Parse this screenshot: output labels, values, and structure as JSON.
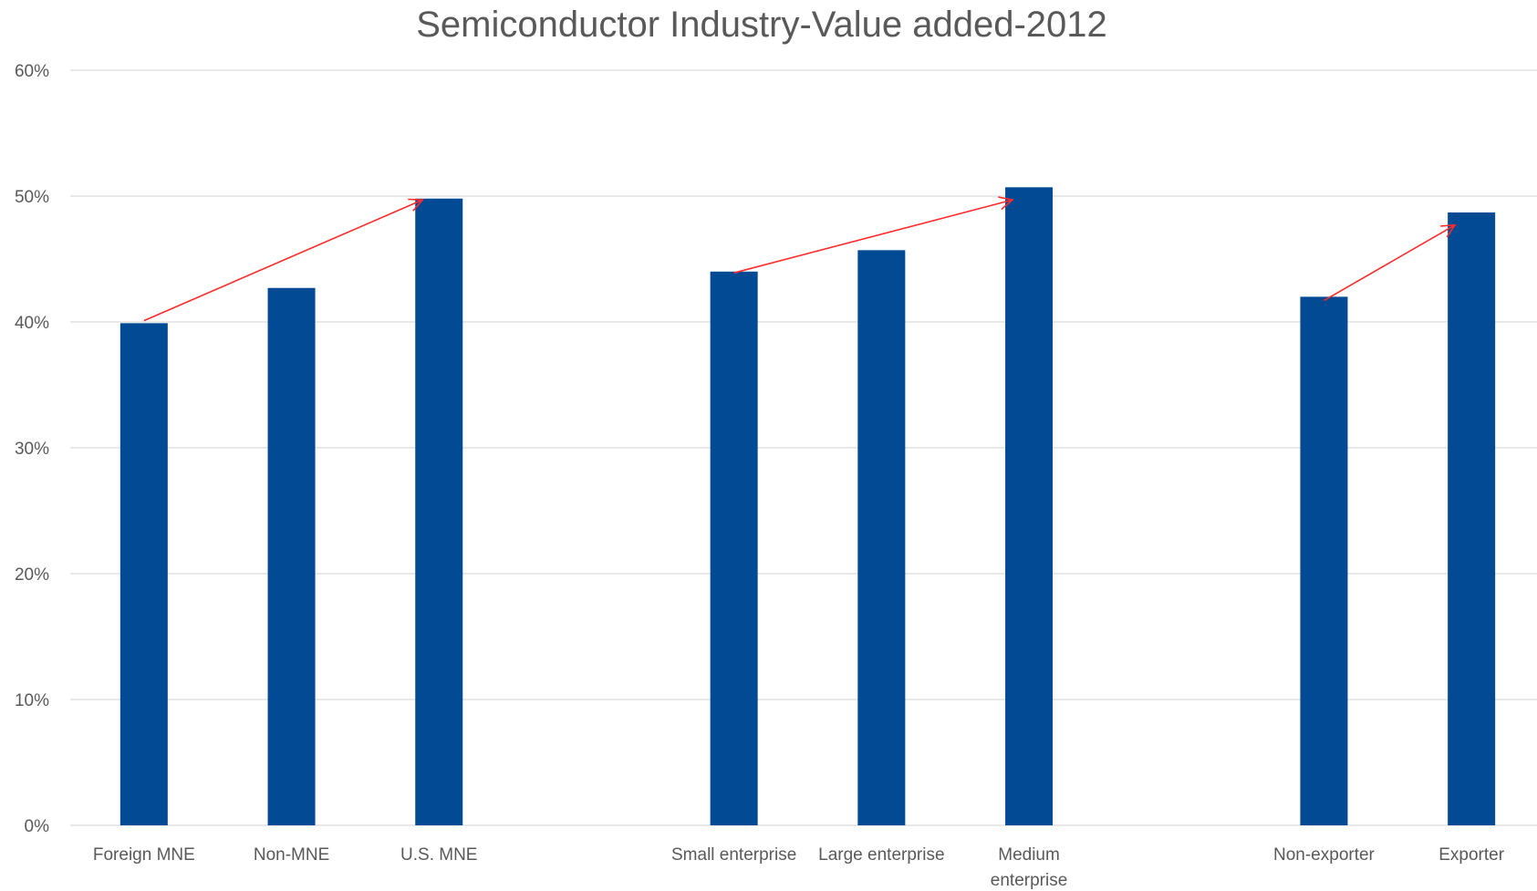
{
  "chart_data": {
    "type": "bar",
    "title": "Semiconductor Industry-Value added-2012",
    "xlabel": "",
    "ylabel": "",
    "ylim": [
      0,
      0.6
    ],
    "yticks": [
      {
        "value": 0.0,
        "label": "0%"
      },
      {
        "value": 0.1,
        "label": "10%"
      },
      {
        "value": 0.2,
        "label": "20%"
      },
      {
        "value": 0.3,
        "label": "30%"
      },
      {
        "value": 0.4,
        "label": "40%"
      },
      {
        "value": 0.5,
        "label": "50%"
      },
      {
        "value": 0.6,
        "label": "60%"
      }
    ],
    "grid": true,
    "legend": "none",
    "bar_color": "#034a94",
    "arrow_color": "#ff2a2a",
    "categories": [
      [
        "Foreign MNE"
      ],
      [
        "Non-MNE"
      ],
      [
        "U.S. MNE"
      ],
      [
        ""
      ],
      [
        "Small enterprise"
      ],
      [
        "Large enterprise"
      ],
      [
        "Medium",
        "enterprise"
      ],
      [
        ""
      ],
      [
        "Non-exporter"
      ],
      [
        "Exporter"
      ]
    ],
    "values": [
      0.399,
      0.427,
      0.498,
      null,
      0.44,
      0.457,
      0.507,
      null,
      0.42,
      0.487
    ],
    "annotations": [
      {
        "type": "arrow",
        "from": {
          "category_index": 0,
          "value": 0.401
        },
        "to": {
          "category_index": 2,
          "value": 0.497
        }
      },
      {
        "type": "arrow",
        "from": {
          "category_index": 4,
          "value": 0.439
        },
        "to": {
          "category_index": 6,
          "value": 0.497
        }
      },
      {
        "type": "arrow",
        "from": {
          "category_index": 8,
          "value": 0.417
        },
        "to": {
          "category_index": 9,
          "value": 0.477
        }
      }
    ]
  }
}
